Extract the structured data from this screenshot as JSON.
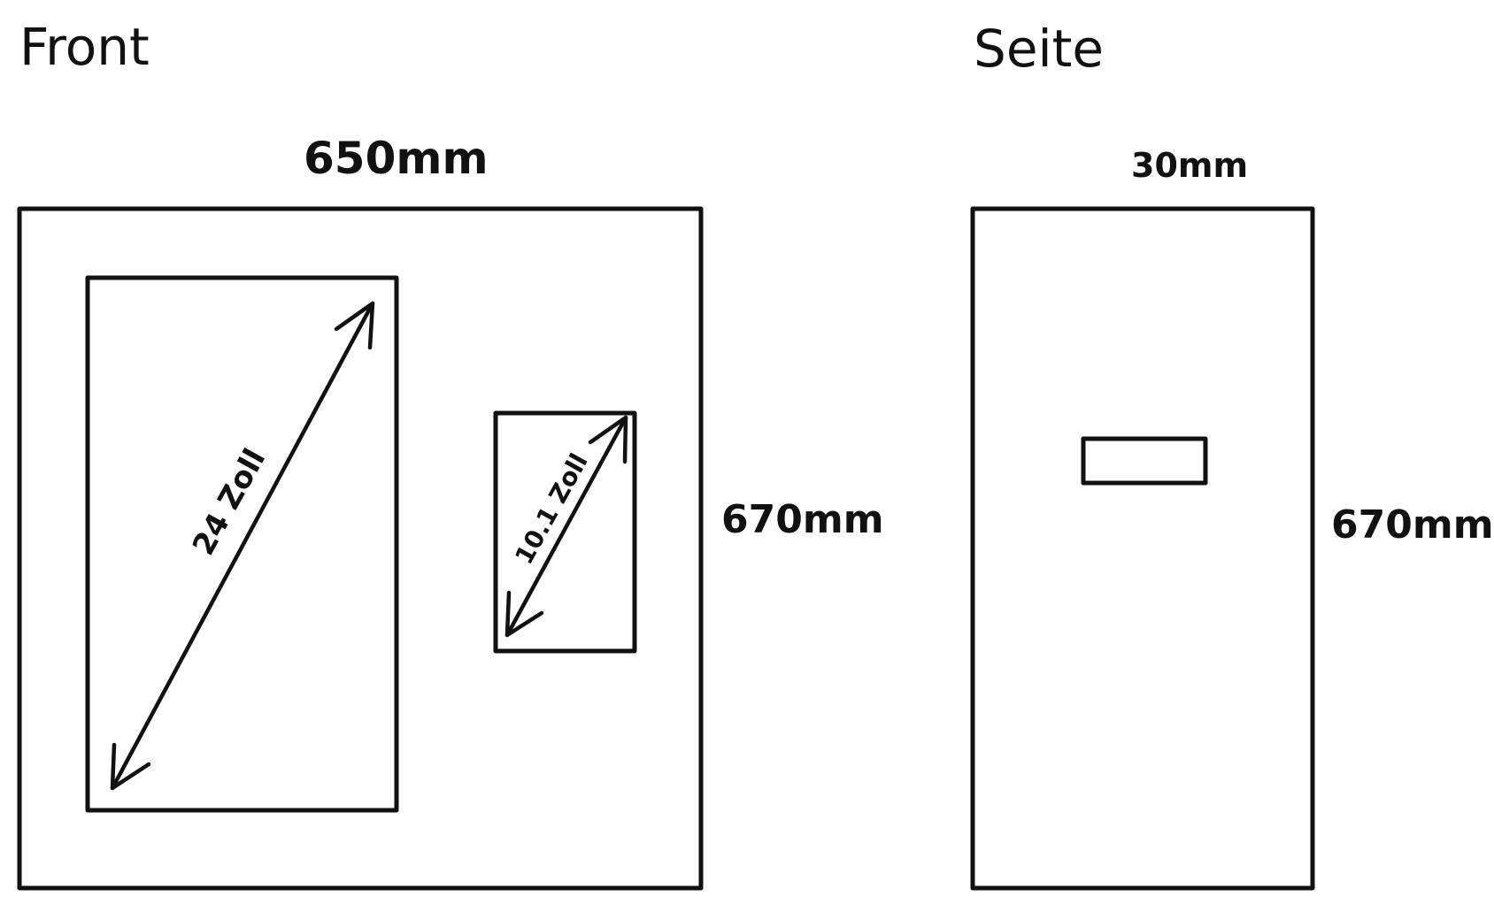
{
  "views": {
    "front": {
      "title": "Front",
      "width_label": "650mm",
      "height_label": "670mm",
      "large_screen_label": "24 Zoll",
      "small_screen_label": "10.1 Zoll"
    },
    "side": {
      "title": "Seite",
      "depth_label": "30mm",
      "height_label": "670mm"
    }
  }
}
